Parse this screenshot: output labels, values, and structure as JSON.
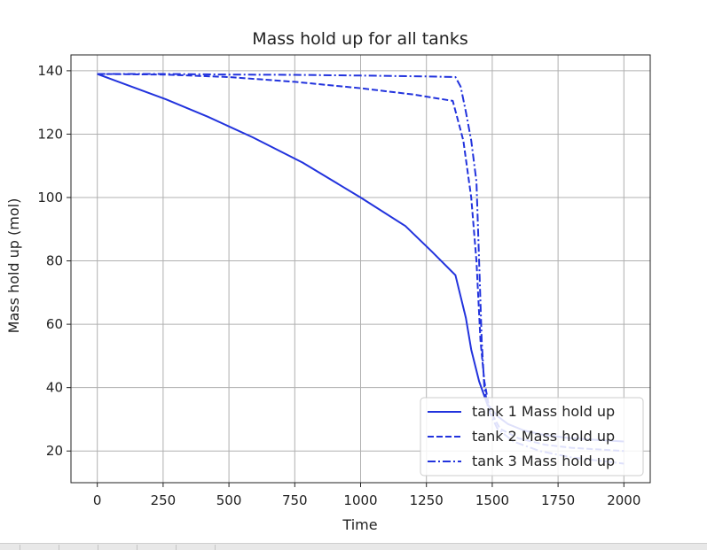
{
  "chart_data": {
    "type": "line",
    "title": "Mass hold up for all tanks",
    "xlabel": "Time",
    "ylabel": "Mass hold up (mol)",
    "xlim": [
      -100,
      2100
    ],
    "ylim": [
      10,
      145
    ],
    "xticks": [
      0,
      250,
      500,
      750,
      1000,
      1250,
      1500,
      1750,
      2000
    ],
    "yticks": [
      20,
      40,
      60,
      80,
      100,
      120,
      140
    ],
    "grid": true,
    "legend_position": "lower-right",
    "line_color": "#2233dd",
    "series": [
      {
        "name": "tank 1 Mass hold up",
        "style": "solid",
        "points": [
          [
            0,
            139
          ],
          [
            130,
            135
          ],
          [
            260,
            131
          ],
          [
            420,
            125.5
          ],
          [
            590,
            119
          ],
          [
            780,
            111
          ],
          [
            1000,
            100
          ],
          [
            1170,
            91
          ],
          [
            1270,
            83
          ],
          [
            1360,
            75.5
          ],
          [
            1400,
            62
          ],
          [
            1420,
            52
          ],
          [
            1450,
            42
          ],
          [
            1480,
            35
          ],
          [
            1520,
            31
          ],
          [
            1560,
            28.5
          ],
          [
            1620,
            26.5
          ],
          [
            1700,
            25
          ],
          [
            1800,
            24
          ],
          [
            1900,
            23.5
          ],
          [
            2000,
            23
          ]
        ]
      },
      {
        "name": "tank 2 Mass hold up",
        "style": "dashed",
        "points": [
          [
            0,
            139
          ],
          [
            250,
            138.8
          ],
          [
            500,
            138
          ],
          [
            750,
            136.5
          ],
          [
            1000,
            134.5
          ],
          [
            1200,
            132.5
          ],
          [
            1350,
            130.5
          ],
          [
            1390,
            118
          ],
          [
            1420,
            100
          ],
          [
            1440,
            80
          ],
          [
            1455,
            55
          ],
          [
            1470,
            42
          ],
          [
            1490,
            33
          ],
          [
            1530,
            27
          ],
          [
            1600,
            24
          ],
          [
            1700,
            22
          ],
          [
            1800,
            21
          ],
          [
            1900,
            20.5
          ],
          [
            2000,
            20
          ]
        ]
      },
      {
        "name": "tank 3 Mass hold up",
        "style": "dashdot",
        "points": [
          [
            0,
            139
          ],
          [
            250,
            139
          ],
          [
            500,
            138.8
          ],
          [
            750,
            138.7
          ],
          [
            1000,
            138.5
          ],
          [
            1250,
            138.2
          ],
          [
            1360,
            138
          ],
          [
            1380,
            135
          ],
          [
            1400,
            127
          ],
          [
            1420,
            118
          ],
          [
            1440,
            105
          ],
          [
            1450,
            80
          ],
          [
            1460,
            55
          ],
          [
            1470,
            40
          ],
          [
            1485,
            33
          ],
          [
            1520,
            27
          ],
          [
            1580,
            23
          ],
          [
            1680,
            20
          ],
          [
            1800,
            18
          ],
          [
            1900,
            17
          ],
          [
            2000,
            16
          ]
        ]
      }
    ]
  }
}
